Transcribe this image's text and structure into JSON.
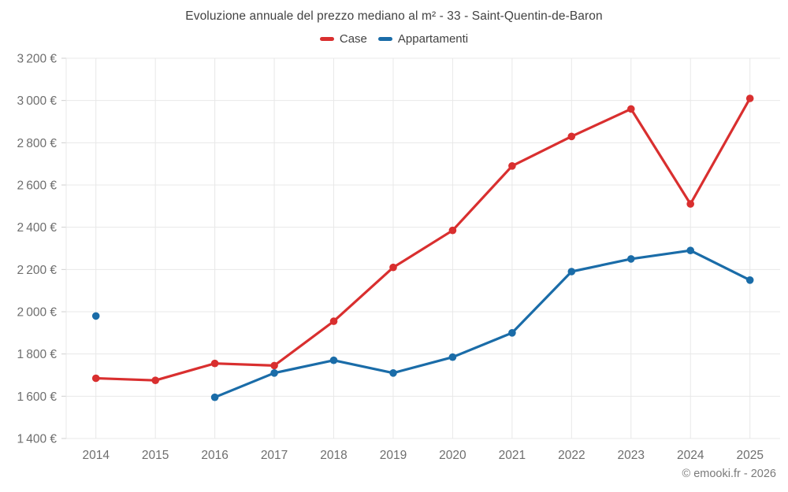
{
  "title": "Evoluzione annuale del prezzo mediano al m² - 33 - Saint-Quentin-de-Baron",
  "footer": "© emooki.fr - 2026",
  "legend": [
    {
      "label": "Case",
      "color": "#d92f2f"
    },
    {
      "label": "Appartamenti",
      "color": "#1a6ca8"
    }
  ],
  "colors": {
    "case_red": "#d92f2f",
    "appartamenti_blue": "#1a6ca8",
    "gridline": "#e8e8e8",
    "tick": "#cfcfcf",
    "axis_label": "#6e6e6e",
    "title_text": "#424242"
  },
  "chart_data": {
    "type": "line",
    "title": "Evoluzione annuale del prezzo mediano al m² - 33 - Saint-Quentin-de-Baron",
    "xlabel": "",
    "ylabel": "",
    "x": [
      2014,
      2015,
      2016,
      2017,
      2018,
      2019,
      2020,
      2021,
      2022,
      2023,
      2024,
      2025
    ],
    "series": [
      {
        "name": "Case",
        "color": "#d92f2f",
        "values": [
          1685,
          1675,
          1755,
          1745,
          1955,
          2210,
          2385,
          2690,
          2830,
          2960,
          2510,
          3010
        ]
      },
      {
        "name": "Appartamenti",
        "color": "#1a6ca8",
        "values": [
          1980,
          null,
          1595,
          1710,
          1770,
          1710,
          1785,
          1900,
          2190,
          2250,
          2290,
          2150
        ]
      }
    ],
    "ylim": [
      1400,
      3200
    ],
    "ytick_step": 200,
    "ytick_suffix": " €",
    "grid": true,
    "legend_position": "top"
  }
}
